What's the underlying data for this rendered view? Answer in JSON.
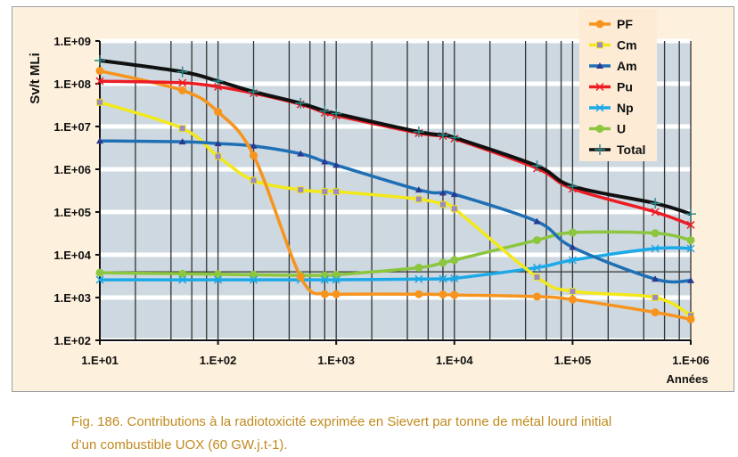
{
  "chart_data": {
    "type": "line",
    "xlabel": "Années",
    "ylabel": "Sv/t MLi",
    "xscale": "log",
    "yscale": "log",
    "xlim": [
      10,
      1000000
    ],
    "ylim": [
      100,
      1000000000
    ],
    "x_tick_labels": [
      "1.E+01",
      "1.E+02",
      "1.E+03",
      "1.E+04",
      "1.E+05",
      "1.E+06"
    ],
    "y_tick_labels": [
      "1.E+02",
      "1.E+03",
      "1.E+04",
      "1.E+05",
      "1.E+06",
      "1.E+07",
      "1.E+08",
      "1.E+09"
    ],
    "grid": true,
    "legend_position": "top-right",
    "reference_line_y": 4000,
    "x": [
      10,
      50,
      100,
      200,
      500,
      800,
      1000,
      5000,
      8000,
      10000,
      50000,
      100000,
      500000,
      1000000
    ],
    "series": [
      {
        "name": "PF",
        "color": "#f7941d",
        "marker": "circle",
        "values": [
          200000000.0,
          70000000.0,
          22000000.0,
          2100000.0,
          3000.0,
          1200.0,
          1200.0,
          1200.0,
          1180.0,
          1150.0,
          1050.0,
          900.0,
          450.0,
          310.0
        ]
      },
      {
        "name": "Cm",
        "color": "#f2e81a",
        "marker": "square",
        "values": [
          37000000.0,
          9000000.0,
          2000000.0,
          550000.0,
          330000.0,
          300000.0,
          300000.0,
          200000.0,
          150000.0,
          120000.0,
          3000.0,
          1400.0,
          1000.0,
          380.0
        ]
      },
      {
        "name": "Am",
        "color": "#1f6fb5",
        "marker": "triangle",
        "values": [
          4600000.0,
          4400000.0,
          4000000.0,
          3500000.0,
          2300000.0,
          1500000.0,
          1250000.0,
          330000.0,
          280000.0,
          260000.0,
          60000.0,
          15000.0,
          2700.0,
          2500.0
        ]
      },
      {
        "name": "Pu",
        "color": "#ed1c24",
        "marker": "x",
        "values": [
          115000000.0,
          105000000.0,
          85000000.0,
          60000000.0,
          33000000.0,
          21000000.0,
          18000000.0,
          7000000.0,
          6000000.0,
          5200000.0,
          1050000.0,
          350000.0,
          100000.0,
          50000.0
        ]
      },
      {
        "name": "Np",
        "color": "#1ba9e8",
        "marker": "x",
        "values": [
          2600.0,
          2600.0,
          2600.0,
          2600.0,
          2600.0,
          2600.0,
          2600.0,
          2700.0,
          2750.0,
          2800.0,
          5000.0,
          7500.0,
          14000.0,
          14000.0
        ]
      },
      {
        "name": "U",
        "color": "#8cc63f",
        "marker": "circle",
        "values": [
          3800.0,
          3600.0,
          3500.0,
          3400.0,
          3300.0,
          3300.0,
          3400.0,
          5000.0,
          6500.0,
          7500.0,
          22000.0,
          33000.0,
          32000.0,
          22000.0
        ]
      },
      {
        "name": "Total",
        "color": "#111111",
        "marker": "plus",
        "values": [
          350000000.0,
          190000000.0,
          115000000.0,
          65000000.0,
          35000000.0,
          23000000.0,
          20000000.0,
          7500000.0,
          6300000.0,
          5500000.0,
          1200000.0,
          400000.0,
          160000.0,
          90000.0
        ]
      }
    ]
  },
  "caption": {
    "line1": "Fig. 186. Contributions à la radiotoxicité exprimée en Sievert par tonne de métal lourd initial",
    "line2": "d’un combustible UOX (60 GW.j.t-1)."
  }
}
